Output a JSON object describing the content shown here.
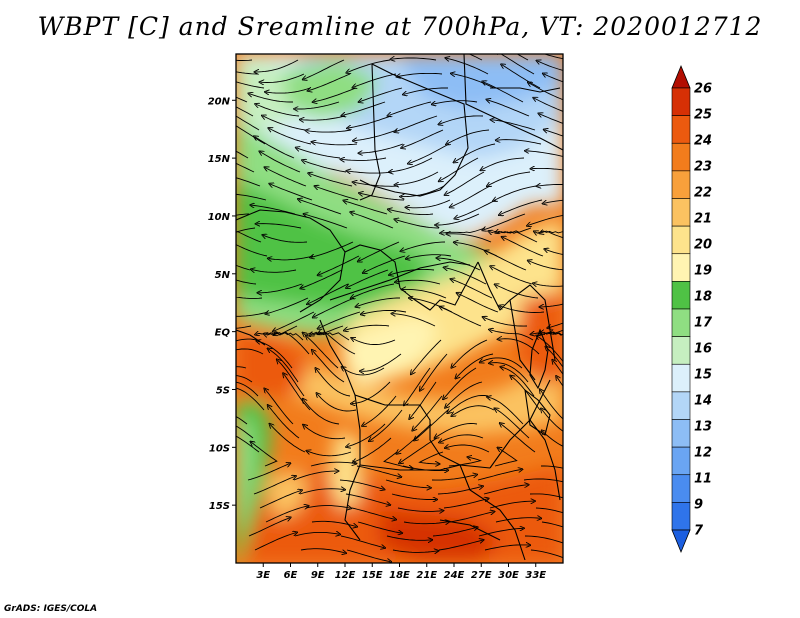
{
  "title": "WBPT [C] and Sreamline at 700hPa, VT: 2020012712",
  "credit": "GrADS: IGES/COLA",
  "map": {
    "lon_range": [
      0,
      36
    ],
    "lat_range": [
      -20,
      24
    ],
    "lat_ticks": [
      {
        "v": 20,
        "label": "20N"
      },
      {
        "v": 15,
        "label": "15N"
      },
      {
        "v": 10,
        "label": "10N"
      },
      {
        "v": 5,
        "label": "5N"
      },
      {
        "v": 0,
        "label": "EQ"
      },
      {
        "v": -5,
        "label": "5S"
      },
      {
        "v": -10,
        "label": "10S"
      },
      {
        "v": -15,
        "label": "15S"
      }
    ],
    "lon_ticks": [
      {
        "v": 3,
        "label": "3E"
      },
      {
        "v": 6,
        "label": "6E"
      },
      {
        "v": 9,
        "label": "9E"
      },
      {
        "v": 12,
        "label": "12E"
      },
      {
        "v": 15,
        "label": "15E"
      },
      {
        "v": 18,
        "label": "18E"
      },
      {
        "v": 21,
        "label": "21E"
      },
      {
        "v": 24,
        "label": "24E"
      },
      {
        "v": 27,
        "label": "27E"
      },
      {
        "v": 30,
        "label": "30E"
      },
      {
        "v": 33,
        "label": "33E"
      }
    ]
  },
  "colorbar": {
    "labels": [
      "7",
      "9",
      "11",
      "12",
      "13",
      "14",
      "15",
      "16",
      "17",
      "18",
      "19",
      "20",
      "21",
      "22",
      "23",
      "24",
      "25",
      "26"
    ],
    "colors": [
      "#1c5fe0",
      "#2f74ea",
      "#4a8cf0",
      "#6aa5f3",
      "#8dbdf5",
      "#b3d6f7",
      "#dcf0fb",
      "#c6efc0",
      "#8fde82",
      "#4fc245",
      "#fff4b2",
      "#fde38c",
      "#fbc261",
      "#f8a03b",
      "#f27c1c",
      "#ec5a0f",
      "#d63005",
      "#b20e02"
    ]
  }
}
